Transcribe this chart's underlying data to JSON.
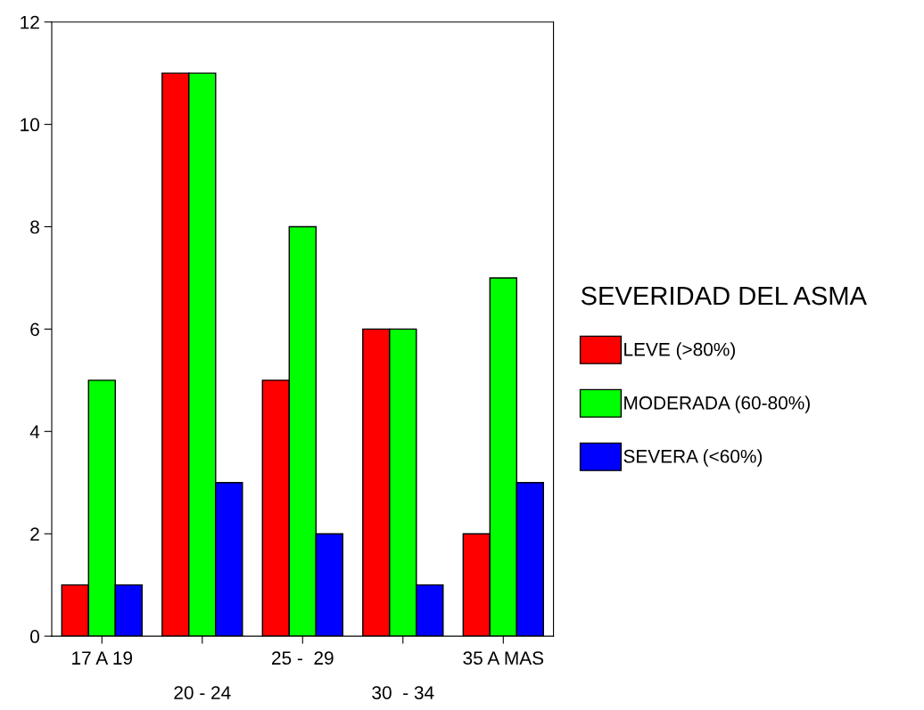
{
  "chart_data": {
    "type": "bar",
    "categories": [
      "17 A 19",
      "20 - 24",
      "25 -  29",
      "30  - 34",
      "35 A MAS"
    ],
    "series": [
      {
        "name": "LEVE (>80%)",
        "color": "#ff0000",
        "values": [
          1,
          11,
          5,
          6,
          2
        ]
      },
      {
        "name": "MODERADA (60-80%)",
        "color": "#00ff00",
        "values": [
          5,
          11,
          8,
          6,
          7
        ]
      },
      {
        "name": "SEVERA (<60%)",
        "color": "#0000ff",
        "values": [
          1,
          3,
          2,
          1,
          3
        ]
      }
    ],
    "legend_title": "SEVERIDAD DEL ASMA",
    "legend": "right",
    "ylim": [
      0,
      12
    ],
    "yticks": [
      0,
      2,
      4,
      6,
      8,
      10,
      12
    ],
    "grid": false
  }
}
